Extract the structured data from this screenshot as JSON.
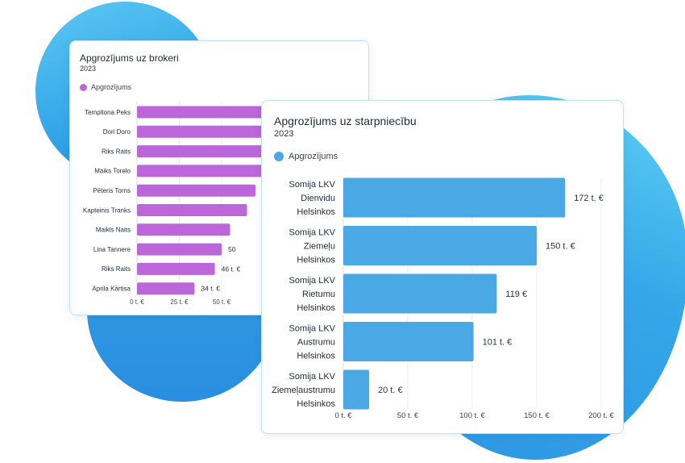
{
  "chart_data": [
    {
      "type": "bar",
      "orientation": "horizontal",
      "title": "Apgrozījums uz brokeri",
      "subtitle": "2023",
      "legend": [
        "Apgrozījums"
      ],
      "categories": [
        "Templtona Peks",
        "Dori Doro",
        "Riks Raits",
        "Maiks Torelo",
        "Pēteris Torns",
        "Kapteinis Tranks",
        "Maikls Naits",
        "Lina Tannere",
        "Riks Raits",
        "Aprila Kārtisa"
      ],
      "values": [
        90,
        85,
        80,
        75,
        70,
        65,
        55,
        50,
        46,
        34
      ],
      "value_labels": [
        "",
        "",
        "",
        "",
        "",
        "",
        "",
        "50",
        "46 t. €",
        "34 t. €"
      ],
      "x_ticks": [
        "0 t. €",
        "25 t. €",
        "50 t. €"
      ],
      "xlim": [
        0,
        100
      ],
      "grid": true,
      "color": "#bb66d9"
    },
    {
      "type": "bar",
      "orientation": "horizontal",
      "title": "Apgrozījums uz starpniecību",
      "subtitle": "2023",
      "legend": [
        "Apgrozījums"
      ],
      "categories": [
        [
          "Somija LKV",
          "Dienvidu",
          "Helsinkos"
        ],
        [
          "Somija LKV",
          "Ziemeļu",
          "Helsinkos"
        ],
        [
          "Somija LKV",
          "Rietumu",
          "Helsinkos"
        ],
        [
          "Somija LKV",
          "Austrumu",
          "Helsinkos"
        ],
        [
          "Somija LKV",
          "Ziemeļaustrumu",
          "Helsinkos"
        ]
      ],
      "values": [
        172,
        150,
        119,
        101,
        20
      ],
      "value_labels": [
        "172 t. €",
        "150 t. €",
        "119 €",
        "101 t. €",
        "20 t. €"
      ],
      "x_ticks": [
        "0 t. €",
        "50 t. €",
        "100 t. €",
        "150 t. €",
        "200 t. €"
      ],
      "xlim": [
        0,
        200
      ],
      "grid": true,
      "color": "#4aa8e4"
    }
  ]
}
